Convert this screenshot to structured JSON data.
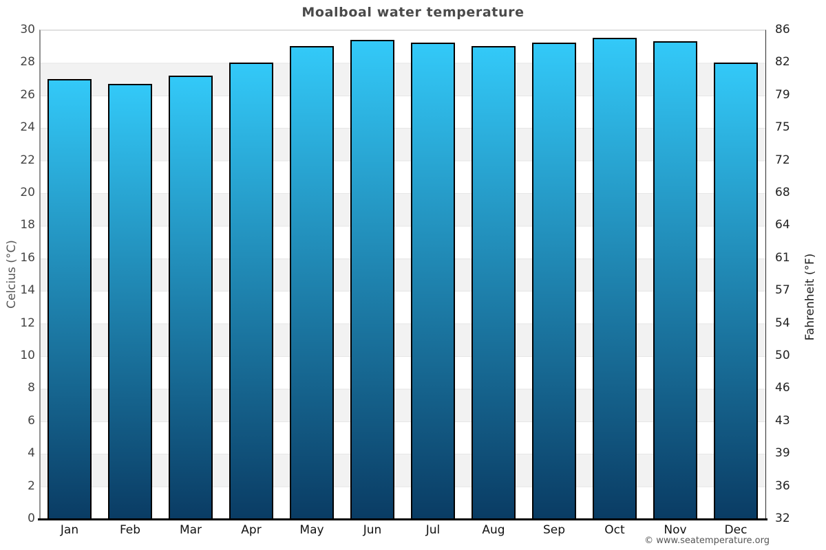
{
  "title": "Moalboal water temperature",
  "watermark": "© www.seatemperature.org",
  "chart_data": {
    "type": "bar",
    "title": "Moalboal water temperature",
    "categories": [
      "Jan",
      "Feb",
      "Mar",
      "Apr",
      "May",
      "Jun",
      "Jul",
      "Aug",
      "Sep",
      "Oct",
      "Nov",
      "Dec"
    ],
    "values": [
      26.9,
      26.6,
      27.1,
      27.9,
      28.9,
      29.3,
      29.1,
      28.9,
      29.1,
      29.4,
      29.2,
      27.9
    ],
    "unit": "°C",
    "xlabel": "",
    "ylabel_left": "Celcius (°C)",
    "ylabel_right": "Fahrenheit (°F)",
    "ylim": [
      0,
      30
    ],
    "yticks_celsius": [
      30,
      28,
      26,
      24,
      22,
      20,
      18,
      16,
      14,
      12,
      10,
      8,
      6,
      4,
      2,
      0
    ],
    "yticks_fahrenheit": [
      86,
      82,
      79,
      75,
      72,
      68,
      64,
      61,
      57,
      54,
      50,
      46,
      43,
      39,
      36,
      32
    ],
    "legend": "none",
    "grid": "alternating horizontal bands every 2°C",
    "colors": {
      "bar_gradient_top": "#33c9f8",
      "bar_gradient_bottom": "#0a3c64",
      "bar_border": "#000000",
      "band_gray": "#f2f2f2",
      "band_white": "#ffffff",
      "baseline": "#000000",
      "title_text": "#4a4a4a"
    }
  }
}
